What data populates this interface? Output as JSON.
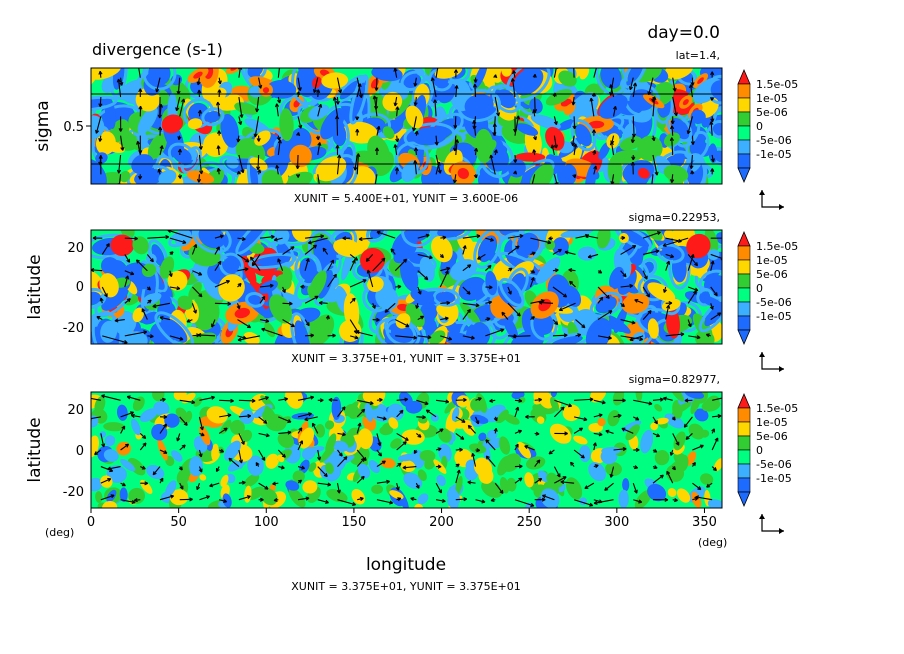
{
  "header": {
    "day_label": "day=0.0",
    "title": "divergence (s-1)"
  },
  "colorbar": {
    "labels": [
      "1.5e-05",
      "1e-05",
      "5e-06",
      "0",
      "-5e-06",
      "-1e-05"
    ],
    "colors": [
      "#ff8c00",
      "#ffd700",
      "#32cd32",
      "#00ff80",
      "#3cb0ff",
      "#1e6bff",
      "#ff1a1a",
      "#00e68a"
    ]
  },
  "palette": {
    "strong_positive": "#ff1a1a",
    "positive_1": "#ff8c00",
    "positive_2": "#ffd700",
    "near_zero_pos": "#32cd32",
    "near_zero_neg": "#00ff80",
    "negative_1": "#3cb0ff",
    "negative_2": "#1e6bff"
  },
  "chart_data": [
    {
      "type": "heatmap",
      "panel": "top",
      "section_label": "lat=1.4,",
      "ylabel": "sigma",
      "yticks": [
        "0.5"
      ],
      "xunit_label": "XUNIT = 5.400E+01, YUNIT = 3.600E-06",
      "ylim": [
        0,
        1
      ],
      "xlim": [
        0,
        360
      ]
    },
    {
      "type": "heatmap",
      "panel": "middle",
      "section_label": "sigma=0.22953,",
      "ylabel": "latitude",
      "yticks": [
        "20",
        "0",
        "-20"
      ],
      "xunit_label": "XUNIT = 3.375E+01, YUNIT = 3.375E+01",
      "ylim": [
        -28,
        28
      ],
      "xlim": [
        0,
        360
      ]
    },
    {
      "type": "heatmap",
      "panel": "bottom",
      "section_label": "sigma=0.82977,",
      "ylabel": "latitude",
      "yticks": [
        "20",
        "0",
        "-20"
      ],
      "xticks": [
        "0",
        "50",
        "100",
        "150",
        "200",
        "250",
        "300",
        "350"
      ],
      "xlabel": "longitude",
      "xunit_label": "XUNIT = 3.375E+01, YUNIT = 3.375E+01",
      "unit_left": "(deg)",
      "unit_right": "(deg)",
      "ylim": [
        -28,
        28
      ],
      "xlim": [
        0,
        360
      ]
    }
  ]
}
